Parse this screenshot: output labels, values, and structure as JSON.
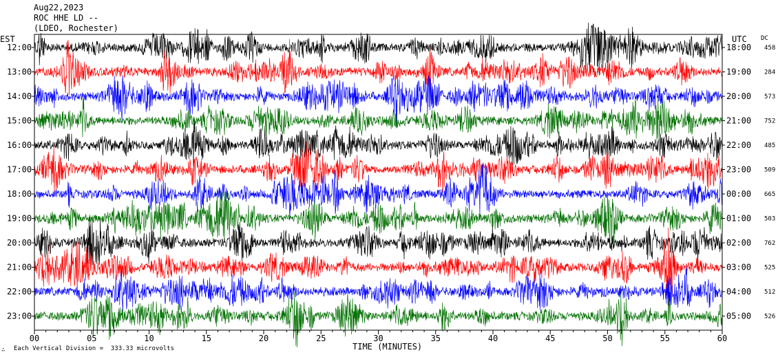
{
  "header": {
    "date": "Aug22,2023",
    "station": "ROC HHE LD --",
    "network": "(LDEO, Rochester)"
  },
  "left_zone_label": "EST",
  "right_zone_label": "UTC",
  "dc_label": "DC",
  "footer": {
    "xlabel": "TIME (MINUTES)",
    "scale_note": "Each Vertical Division =  333.33 microvolts",
    "mark": "∴"
  },
  "chart_data": {
    "type": "line",
    "title": "Aug22,2023 ROC HHE LD -- (LDEO, Rochester)",
    "xlabel": "TIME (MINUTES)",
    "ylabel": "",
    "xlim": [
      0,
      60
    ],
    "x_ticks": [
      "00",
      "05",
      "10",
      "15",
      "20",
      "25",
      "30",
      "35",
      "40",
      "45",
      "50",
      "55",
      "60"
    ],
    "trace_colors": [
      "#000000",
      "#ff0000",
      "#0000ff",
      "#007000"
    ],
    "rows": [
      {
        "est": "12:00",
        "utc": "18:00",
        "dc": "458"
      },
      {
        "est": "13:00",
        "utc": "19:00",
        "dc": "284"
      },
      {
        "est": "14:00",
        "utc": "20:00",
        "dc": "573"
      },
      {
        "est": "15:00",
        "utc": "21:00",
        "dc": "752"
      },
      {
        "est": "16:00",
        "utc": "22:00",
        "dc": "485"
      },
      {
        "est": "17:00",
        "utc": "23:00",
        "dc": "509"
      },
      {
        "est": "18:00",
        "utc": "00:00",
        "dc": "665"
      },
      {
        "est": "19:00",
        "utc": "01:00",
        "dc": "503"
      },
      {
        "est": "20:00",
        "utc": "02:00",
        "dc": "762"
      },
      {
        "est": "21:00",
        "utc": "03:00",
        "dc": "525"
      },
      {
        "est": "22:00",
        "utc": "04:00",
        "dc": "512"
      },
      {
        "est": "23:00",
        "utc": "05:00",
        "dc": "526"
      }
    ]
  }
}
